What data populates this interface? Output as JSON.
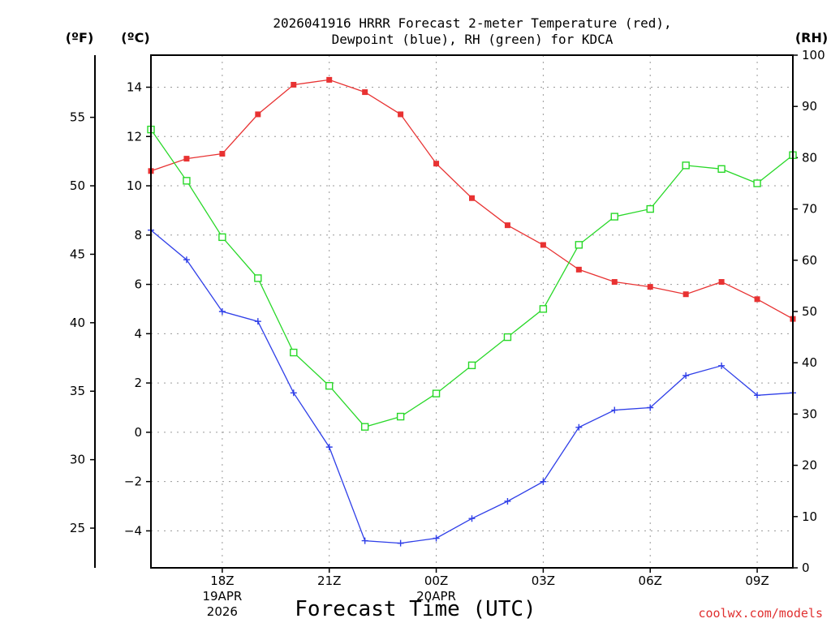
{
  "chart_data": {
    "type": "line",
    "title": [
      "2026041916 HRRR Forecast 2-meter Temperature (red),",
      "Dewpoint (blue), RH (green) for KDCA"
    ],
    "xlabel": "Forecast Time (UTC)",
    "units": {
      "fahrenheit": "(ºF)",
      "celsius": "(ºC)",
      "rh": "(RH)"
    },
    "credit": "coolwx.com/models",
    "x": [
      16,
      17,
      18,
      19,
      20,
      21,
      22,
      23,
      24,
      25,
      26,
      27,
      28,
      29,
      30,
      31,
      32,
      33,
      34
    ],
    "xlim": [
      16,
      34
    ],
    "x_ticks": [
      {
        "x": 18,
        "lines": [
          "18Z",
          "19APR",
          "2026"
        ]
      },
      {
        "x": 21,
        "lines": [
          "21Z"
        ]
      },
      {
        "x": 24,
        "lines": [
          "00Z",
          "20APR"
        ]
      },
      {
        "x": 27,
        "lines": [
          "03Z"
        ]
      },
      {
        "x": 30,
        "lines": [
          "06Z"
        ]
      },
      {
        "x": 33,
        "lines": [
          "09Z"
        ]
      }
    ],
    "y_celsius": {
      "lim": [
        -5.5,
        15.3
      ],
      "ticks": [
        -4,
        -2,
        0,
        2,
        4,
        6,
        8,
        10,
        12,
        14
      ],
      "tick_labels": [
        "−4",
        "−2",
        "0",
        "2",
        "4",
        "6",
        "8",
        "10",
        "12",
        "14"
      ]
    },
    "y_fahrenheit": {
      "ticks": [
        25,
        30,
        35,
        40,
        45,
        50,
        55
      ],
      "tick_labels": [
        "25",
        "30",
        "35",
        "40",
        "45",
        "50",
        "55"
      ]
    },
    "y_rh": {
      "lim": [
        0,
        100
      ],
      "ticks": [
        0,
        10,
        20,
        30,
        40,
        50,
        60,
        70,
        80,
        90,
        100
      ],
      "tick_labels": [
        "0",
        "10",
        "20",
        "30",
        "40",
        "50",
        "60",
        "70",
        "80",
        "90",
        "100"
      ]
    },
    "series": [
      {
        "name": "Temperature",
        "axis": "celsius",
        "color": "#e83232",
        "marker": "filled-square",
        "values": [
          10.6,
          11.1,
          11.3,
          12.9,
          14.1,
          14.3,
          13.8,
          12.9,
          10.9,
          9.5,
          8.4,
          7.6,
          6.6,
          6.1,
          5.9,
          5.6,
          6.1,
          5.4,
          4.6
        ]
      },
      {
        "name": "Dewpoint",
        "axis": "celsius",
        "color": "#2f3fe8",
        "marker": "plus",
        "values": [
          8.2,
          7.0,
          4.9,
          4.5,
          1.6,
          -0.6,
          -4.4,
          -4.5,
          -4.3,
          -3.5,
          -2.8,
          -2.0,
          0.2,
          0.9,
          1.0,
          2.3,
          2.7,
          1.5,
          1.6
        ]
      },
      {
        "name": "RH",
        "axis": "rh",
        "color": "#28d828",
        "marker": "open-square",
        "values": [
          85.5,
          75.5,
          64.5,
          56.5,
          42.0,
          35.5,
          27.5,
          29.5,
          34.0,
          39.5,
          45.0,
          50.5,
          63.0,
          68.5,
          70.0,
          78.5,
          77.8,
          75.0,
          80.5
        ]
      }
    ]
  }
}
